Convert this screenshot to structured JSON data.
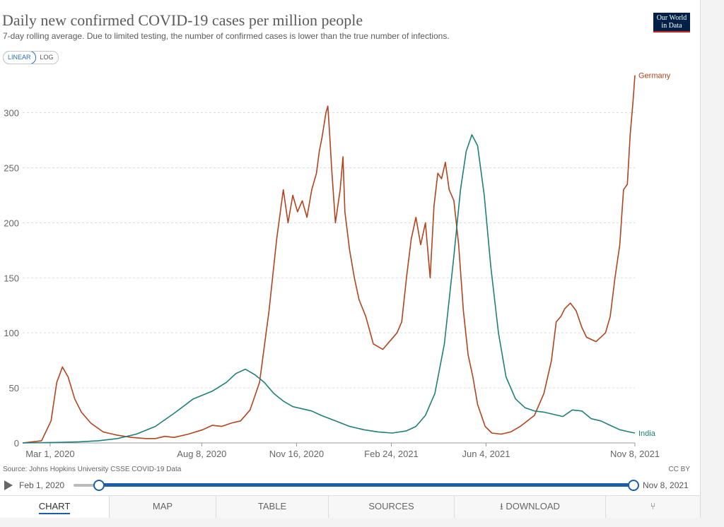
{
  "header": {
    "title": "Daily new confirmed COVID-19 cases per million people",
    "subtitle": "7-day rolling average. Due to limited testing, the number of confirmed cases is lower than the true number of infections.",
    "logo_line1": "Our World",
    "logo_line2": "in Data",
    "scale_linear": "LINEAR",
    "scale_log": "LOG"
  },
  "footer": {
    "source": "Source: Johns Hopkins University CSSE COVID-19 Data",
    "license": "CC BY",
    "start_date": "Feb 1, 2020",
    "end_date": "Nov 8, 2021"
  },
  "tabs": {
    "chart": "CHART",
    "map": "MAP",
    "table": "TABLE",
    "sources": "SOURCES",
    "download": "DOWNLOAD"
  },
  "colors": {
    "germany": "#b4431c",
    "india": "#1f8078",
    "grid": "#dddddd",
    "accent": "#1d5fa7"
  },
  "chart_data": {
    "type": "line",
    "title": "Daily new confirmed COVID-19 cases per million people",
    "ylabel": "",
    "xlabel": "",
    "ylim": [
      0,
      335
    ],
    "yticks": [
      0,
      50,
      100,
      150,
      200,
      250,
      300
    ],
    "x_start": "2020-02-01",
    "x_end": "2021-11-08",
    "xlim_days": [
      0,
      646
    ],
    "xticks": [
      {
        "label": "Mar 1, 2020",
        "day": 29
      },
      {
        "label": "Aug 8, 2020",
        "day": 189
      },
      {
        "label": "Nov 16, 2020",
        "day": 289
      },
      {
        "label": "Feb 24, 2021",
        "day": 389
      },
      {
        "label": "Jun 4, 2021",
        "day": 489
      },
      {
        "label": "Nov 8, 2021",
        "day": 646
      }
    ],
    "series": [
      {
        "name": "Germany",
        "color_key": "germany",
        "points": [
          [
            0,
            0
          ],
          [
            20,
            2
          ],
          [
            30,
            20
          ],
          [
            36,
            55
          ],
          [
            42,
            69
          ],
          [
            48,
            60
          ],
          [
            55,
            40
          ],
          [
            62,
            28
          ],
          [
            72,
            18
          ],
          [
            85,
            10
          ],
          [
            100,
            7
          ],
          [
            115,
            5
          ],
          [
            130,
            4
          ],
          [
            140,
            4
          ],
          [
            150,
            6
          ],
          [
            160,
            5
          ],
          [
            175,
            8
          ],
          [
            190,
            12
          ],
          [
            200,
            16
          ],
          [
            210,
            15
          ],
          [
            220,
            18
          ],
          [
            230,
            20
          ],
          [
            240,
            30
          ],
          [
            250,
            55
          ],
          [
            260,
            120
          ],
          [
            268,
            185
          ],
          [
            275,
            230
          ],
          [
            280,
            200
          ],
          [
            285,
            225
          ],
          [
            290,
            210
          ],
          [
            295,
            220
          ],
          [
            300,
            205
          ],
          [
            305,
            230
          ],
          [
            310,
            245
          ],
          [
            313,
            265
          ],
          [
            316,
            278
          ],
          [
            320,
            300
          ],
          [
            322,
            306
          ],
          [
            324,
            280
          ],
          [
            326,
            250
          ],
          [
            330,
            200
          ],
          [
            335,
            230
          ],
          [
            338,
            260
          ],
          [
            340,
            210
          ],
          [
            345,
            175
          ],
          [
            350,
            150
          ],
          [
            355,
            130
          ],
          [
            362,
            115
          ],
          [
            370,
            90
          ],
          [
            380,
            85
          ],
          [
            395,
            100
          ],
          [
            400,
            110
          ],
          [
            405,
            150
          ],
          [
            410,
            185
          ],
          [
            415,
            205
          ],
          [
            420,
            180
          ],
          [
            425,
            200
          ],
          [
            430,
            150
          ],
          [
            434,
            215
          ],
          [
            438,
            245
          ],
          [
            442,
            240
          ],
          [
            446,
            255
          ],
          [
            450,
            230
          ],
          [
            455,
            220
          ],
          [
            460,
            180
          ],
          [
            465,
            120
          ],
          [
            470,
            80
          ],
          [
            475,
            60
          ],
          [
            480,
            35
          ],
          [
            488,
            15
          ],
          [
            495,
            9
          ],
          [
            505,
            8
          ],
          [
            515,
            10
          ],
          [
            525,
            15
          ],
          [
            540,
            25
          ],
          [
            550,
            45
          ],
          [
            558,
            75
          ],
          [
            563,
            110
          ],
          [
            568,
            115
          ],
          [
            572,
            122
          ],
          [
            578,
            127
          ],
          [
            584,
            120
          ],
          [
            590,
            105
          ],
          [
            595,
            96
          ],
          [
            605,
            92
          ],
          [
            615,
            100
          ],
          [
            620,
            115
          ],
          [
            625,
            150
          ],
          [
            630,
            180
          ],
          [
            634,
            230
          ],
          [
            638,
            235
          ],
          [
            641,
            280
          ],
          [
            644,
            310
          ],
          [
            646,
            334
          ]
        ]
      },
      {
        "name": "India",
        "color_key": "india",
        "points": [
          [
            0,
            0
          ],
          [
            40,
            0.5
          ],
          [
            60,
            1
          ],
          [
            80,
            2
          ],
          [
            100,
            4
          ],
          [
            120,
            8
          ],
          [
            140,
            15
          ],
          [
            160,
            27
          ],
          [
            180,
            40
          ],
          [
            200,
            47
          ],
          [
            215,
            55
          ],
          [
            225,
            63
          ],
          [
            235,
            67
          ],
          [
            245,
            62
          ],
          [
            255,
            55
          ],
          [
            265,
            45
          ],
          [
            275,
            38
          ],
          [
            285,
            33
          ],
          [
            295,
            31
          ],
          [
            305,
            29
          ],
          [
            315,
            25
          ],
          [
            330,
            20
          ],
          [
            345,
            15
          ],
          [
            360,
            12
          ],
          [
            375,
            10
          ],
          [
            390,
            9
          ],
          [
            405,
            11
          ],
          [
            415,
            15
          ],
          [
            425,
            25
          ],
          [
            435,
            45
          ],
          [
            445,
            90
          ],
          [
            455,
            170
          ],
          [
            462,
            230
          ],
          [
            468,
            265
          ],
          [
            474,
            280
          ],
          [
            480,
            270
          ],
          [
            487,
            225
          ],
          [
            494,
            160
          ],
          [
            502,
            100
          ],
          [
            510,
            60
          ],
          [
            520,
            40
          ],
          [
            530,
            32
          ],
          [
            540,
            29
          ],
          [
            550,
            28
          ],
          [
            560,
            26
          ],
          [
            570,
            24
          ],
          [
            580,
            30
          ],
          [
            590,
            29
          ],
          [
            600,
            22
          ],
          [
            610,
            20
          ],
          [
            620,
            16
          ],
          [
            630,
            12
          ],
          [
            640,
            10
          ],
          [
            646,
            9
          ]
        ]
      }
    ]
  }
}
